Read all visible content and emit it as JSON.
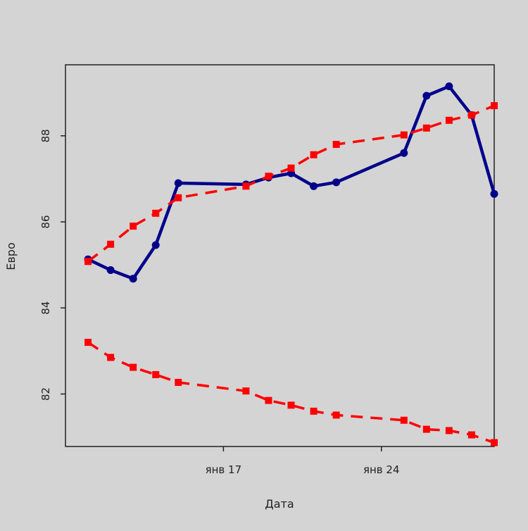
{
  "chart_data": {
    "type": "line",
    "title": "",
    "xlabel": "Дата",
    "ylabel": "Евро",
    "ylim": [
      80.78,
      89.65
    ],
    "xlim": [
      "2022-01-10",
      "2022-01-29"
    ],
    "grid": false,
    "x_ticks": [
      {
        "date": "2022-01-17",
        "label": "янв 17"
      },
      {
        "date": "2022-01-24",
        "label": "янв 24"
      }
    ],
    "y_ticks": [
      82,
      84,
      86,
      88
    ],
    "x": [
      "2022-01-11",
      "2022-01-12",
      "2022-01-13",
      "2022-01-14",
      "2022-01-15",
      "2022-01-18",
      "2022-01-19",
      "2022-01-20",
      "2022-01-21",
      "2022-01-22",
      "2022-01-25",
      "2022-01-26",
      "2022-01-27",
      "2022-01-28",
      "2022-01-29"
    ],
    "series": [
      {
        "style": "solid",
        "color": "#00008b",
        "marker": "circle",
        "values": [
          85.13,
          84.88,
          84.68,
          85.46,
          86.9,
          86.87,
          87.03,
          87.13,
          86.83,
          86.92,
          87.6,
          88.93,
          89.15,
          88.48,
          86.65
        ]
      },
      {
        "style": "dashed",
        "color": "#ff0000",
        "marker": "square",
        "values": [
          85.08,
          85.48,
          85.9,
          86.2,
          86.56,
          86.83,
          87.06,
          87.25,
          87.56,
          87.8,
          88.02,
          88.18,
          88.36,
          88.48,
          88.7
        ]
      },
      {
        "style": "dashed",
        "color": "#ff0000",
        "marker": "square",
        "values": [
          83.2,
          82.85,
          82.62,
          82.45,
          82.27,
          82.07,
          81.85,
          81.74,
          81.6,
          81.51,
          81.39,
          81.18,
          81.15,
          81.05,
          80.87
        ]
      }
    ]
  }
}
